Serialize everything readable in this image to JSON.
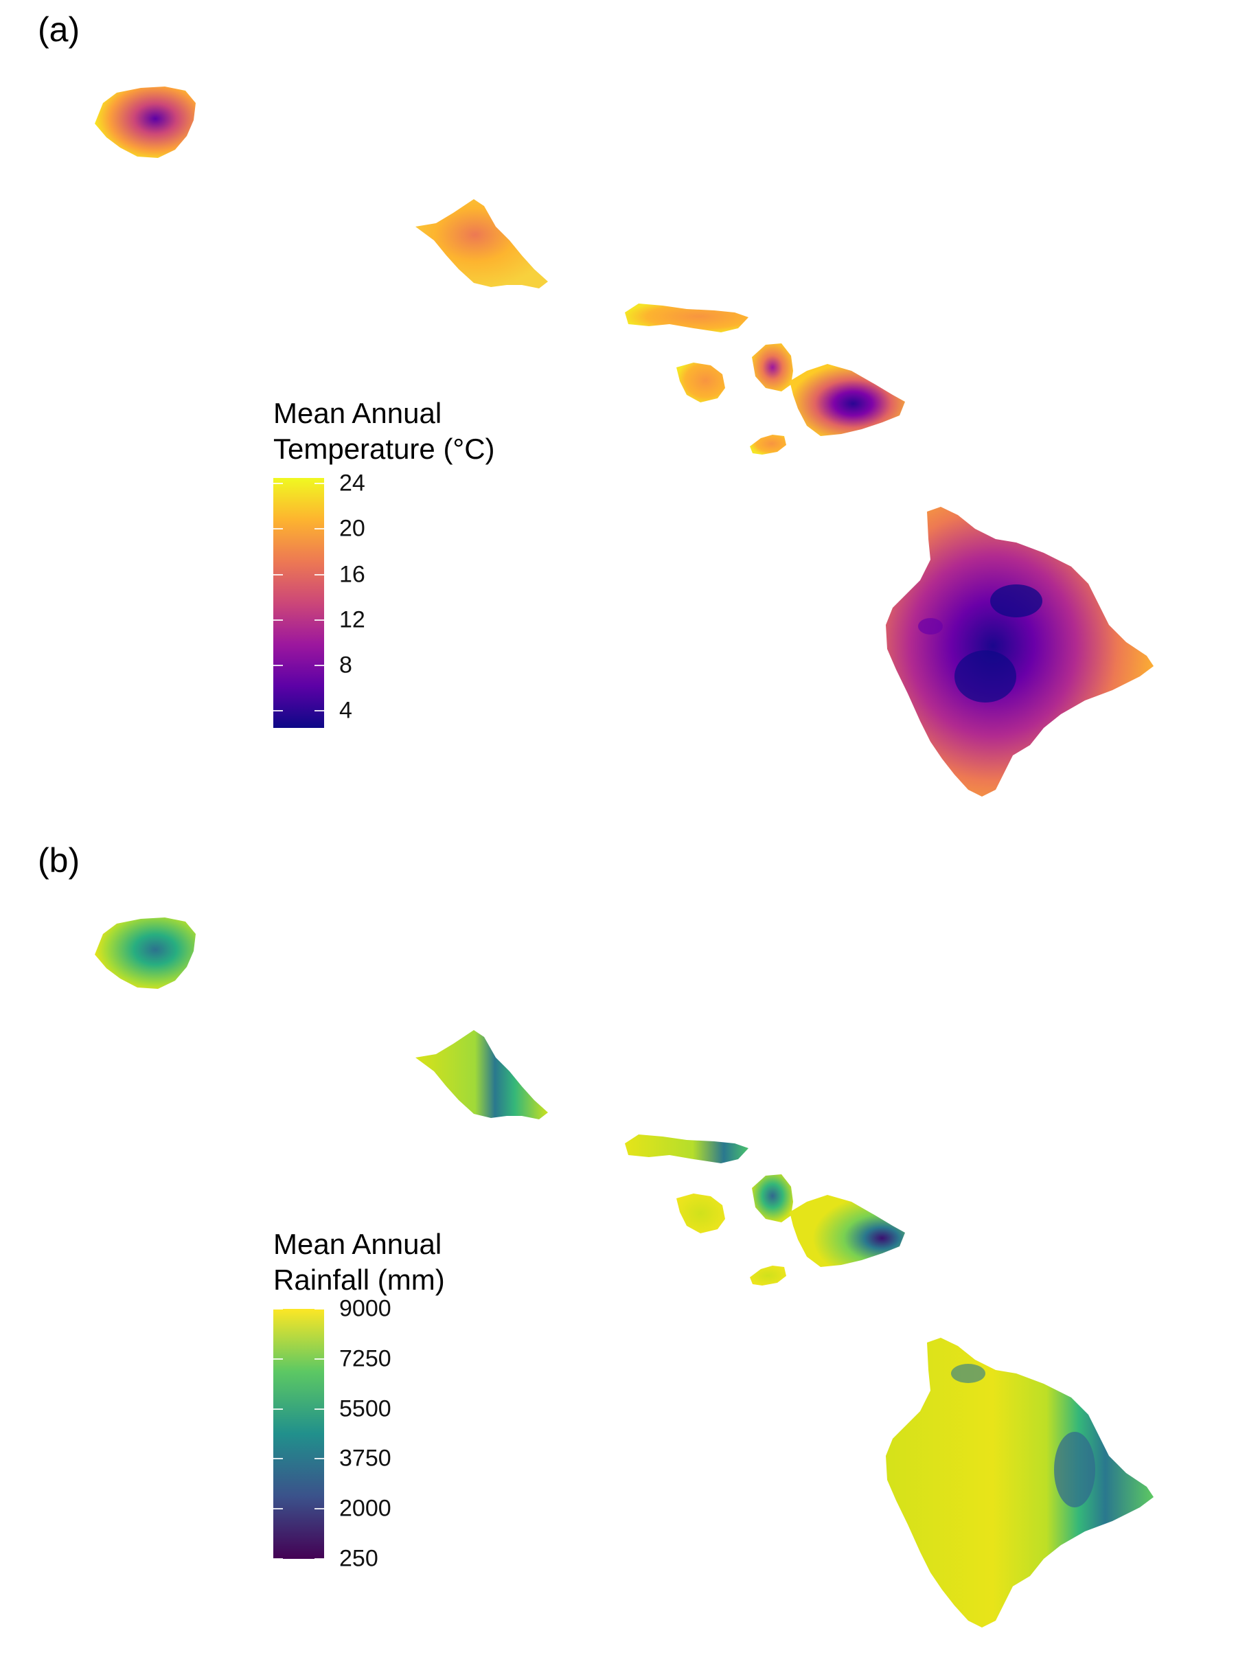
{
  "panels": [
    {
      "label": "(a)",
      "legend": {
        "title_line1": "Mean Annual",
        "title_line2": "Temperature (°C)",
        "ticks": [
          "24",
          "20",
          "16",
          "12",
          "8",
          "4"
        ],
        "tick_values": [
          24,
          20,
          16,
          12,
          8,
          4
        ],
        "range": [
          2.5,
          24.5
        ],
        "palette": "plasma",
        "colors": [
          "#0d0887",
          "#5c01a6",
          "#9c179e",
          "#cc4778",
          "#ed7953",
          "#fdb42f",
          "#f0f921"
        ]
      }
    },
    {
      "label": "(b)",
      "legend": {
        "title_line1": "Mean Annual",
        "title_line2": "Rainfall (mm)",
        "ticks": [
          "9000",
          "7250",
          "5500",
          "3750",
          "2000",
          "250"
        ],
        "tick_values": [
          9000,
          7250,
          5500,
          3750,
          2000,
          250
        ],
        "range": [
          250,
          9000
        ],
        "palette": "viridis",
        "colors": [
          "#440154",
          "#3b528b",
          "#21908c",
          "#5dc863",
          "#fde725"
        ]
      }
    }
  ],
  "islands": [
    "Kauai",
    "Oahu",
    "Molokai",
    "Lanai",
    "Maui",
    "Kahoolawe",
    "Hawaii"
  ]
}
